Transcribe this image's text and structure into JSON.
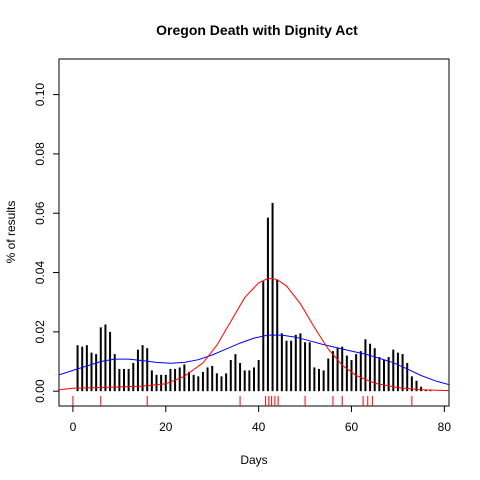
{
  "chart_data": {
    "type": "bar",
    "title": "Oregon Death with Dignity Act",
    "xlabel": "Days",
    "ylabel": "% of results",
    "xlim": [
      -3,
      81
    ],
    "ylim": [
      -0.005,
      0.112
    ],
    "x_ticks": [
      0,
      20,
      40,
      60,
      80
    ],
    "y_ticks": [
      0.0,
      0.02,
      0.04,
      0.06,
      0.08,
      0.1
    ],
    "y_tick_labels": [
      "0.00",
      "0.02",
      "0.04",
      "0.06",
      "0.08",
      "0.10"
    ],
    "grid": false,
    "legend": "none",
    "bars": {
      "color": "#000000",
      "x": [
        1,
        2,
        3,
        4,
        5,
        6,
        7,
        8,
        9,
        10,
        11,
        12,
        13,
        14,
        15,
        16,
        17,
        18,
        19,
        20,
        21,
        22,
        23,
        24,
        25,
        26,
        27,
        28,
        29,
        30,
        31,
        32,
        33,
        34,
        35,
        36,
        37,
        38,
        39,
        40,
        41,
        42,
        43,
        44,
        45,
        46,
        47,
        48,
        49,
        50,
        51,
        52,
        53,
        54,
        55,
        56,
        57,
        58,
        59,
        60,
        61,
        62,
        63,
        64,
        65,
        66,
        67,
        68,
        69,
        70,
        71,
        72,
        73,
        74,
        75,
        76,
        77
      ],
      "y": [
        0.0155,
        0.015,
        0.0155,
        0.013,
        0.0125,
        0.0215,
        0.0225,
        0.02,
        0.0125,
        0.0075,
        0.0075,
        0.0075,
        0.0095,
        0.014,
        0.0155,
        0.0145,
        0.007,
        0.0055,
        0.0055,
        0.0055,
        0.0075,
        0.0075,
        0.008,
        0.009,
        0.0065,
        0.0055,
        0.005,
        0.0065,
        0.008,
        0.0085,
        0.006,
        0.005,
        0.006,
        0.0105,
        0.0125,
        0.0095,
        0.007,
        0.007,
        0.008,
        0.0105,
        0.037,
        0.0585,
        0.0635,
        0.0375,
        0.0195,
        0.017,
        0.017,
        0.019,
        0.0195,
        0.0165,
        0.0165,
        0.008,
        0.0075,
        0.007,
        0.011,
        0.0135,
        0.0145,
        0.015,
        0.012,
        0.0105,
        0.0125,
        0.0135,
        0.0175,
        0.016,
        0.0145,
        0.0115,
        0.0105,
        0.0115,
        0.014,
        0.013,
        0.0125,
        0.0095,
        0.005,
        0.0035,
        0.0015,
        0.0005,
        0.0002
      ]
    },
    "series": [
      {
        "color": "#0000ff",
        "x": [
          -3,
          0,
          3,
          6,
          9,
          12,
          15,
          18,
          21,
          24,
          27,
          30,
          33,
          36,
          39,
          42,
          45,
          48,
          51,
          54,
          57,
          60,
          63,
          66,
          69,
          72,
          75,
          78,
          81
        ],
        "y": [
          0.0055,
          0.007,
          0.0085,
          0.01,
          0.0108,
          0.0108,
          0.0103,
          0.0097,
          0.0094,
          0.0097,
          0.0106,
          0.0122,
          0.0142,
          0.0162,
          0.0179,
          0.0189,
          0.0189,
          0.0182,
          0.017,
          0.0157,
          0.0146,
          0.0135,
          0.0125,
          0.0111,
          0.0096,
          0.0075,
          0.0053,
          0.0035,
          0.0022
        ]
      },
      {
        "color": "#ff0000",
        "x": [
          -3,
          0,
          5,
          10,
          15,
          20,
          24,
          28,
          31,
          34,
          37,
          40,
          42,
          43,
          44,
          46,
          49,
          52,
          55,
          58,
          61,
          65,
          70,
          75,
          81
        ],
        "y": [
          0.0005,
          0.001,
          0.0012,
          0.0014,
          0.0017,
          0.0025,
          0.005,
          0.0095,
          0.0155,
          0.0235,
          0.0315,
          0.0365,
          0.038,
          0.038,
          0.0376,
          0.0355,
          0.0295,
          0.0215,
          0.0142,
          0.0088,
          0.0053,
          0.0027,
          0.0012,
          0.0005,
          0.0002
        ]
      }
    ],
    "rug": {
      "color": "#ff0000",
      "x": [
        0,
        6,
        16,
        36,
        41.5,
        42.2,
        42.8,
        43.5,
        44.2,
        50,
        56,
        58,
        62.5,
        63.5,
        64.5,
        73
      ]
    }
  }
}
